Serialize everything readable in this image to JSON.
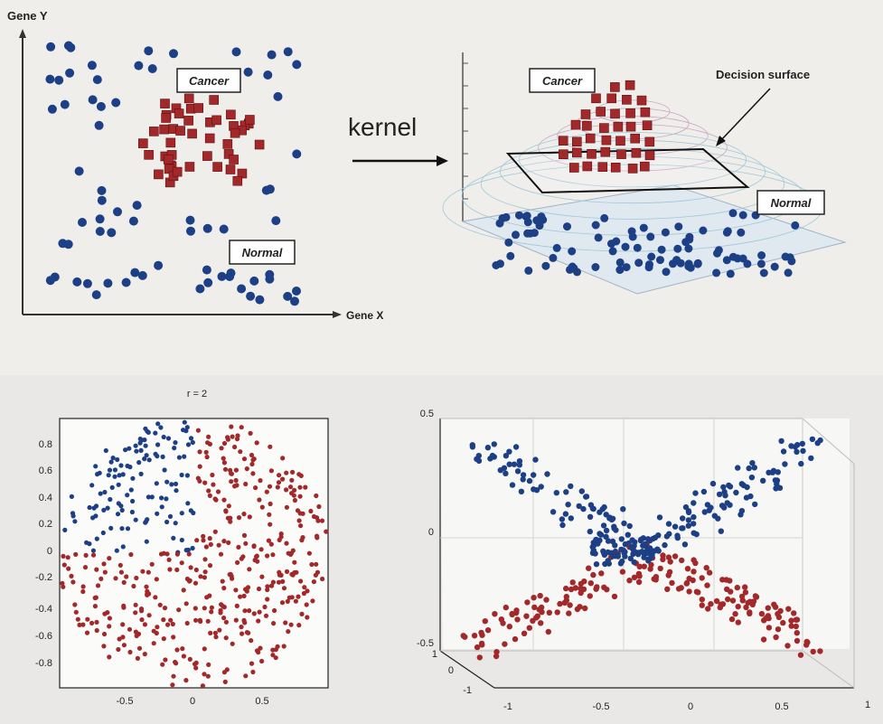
{
  "top_left": {
    "y_axis_label": "Gene Y",
    "x_axis_label": "Gene X",
    "cancer_label": "Cancer",
    "normal_label": "Normal"
  },
  "arrow": {
    "label": "kernel"
  },
  "top_right": {
    "cancer_label": "Cancer",
    "normal_label": "Normal",
    "surface_label": "Decision surface"
  },
  "bottom_left": {
    "title": "r = 2",
    "y_ticks": [
      "0.8",
      "0.6",
      "0.4",
      "0.2",
      "0",
      "-0.2",
      "-0.4",
      "-0.6",
      "-0.8"
    ],
    "x_ticks": [
      "-0.5",
      "0",
      "0.5"
    ]
  },
  "bottom_right": {
    "z_ticks": [
      "0.5",
      "0",
      "-0.5"
    ],
    "x_ticks": [
      "-1",
      "-0.5",
      "0",
      "0.5",
      "1"
    ],
    "y_ticks": [
      "1",
      "0",
      "-1"
    ]
  },
  "colors": {
    "blue": "#1c3f86",
    "red": "#a3282a",
    "axis": "#333333"
  }
}
